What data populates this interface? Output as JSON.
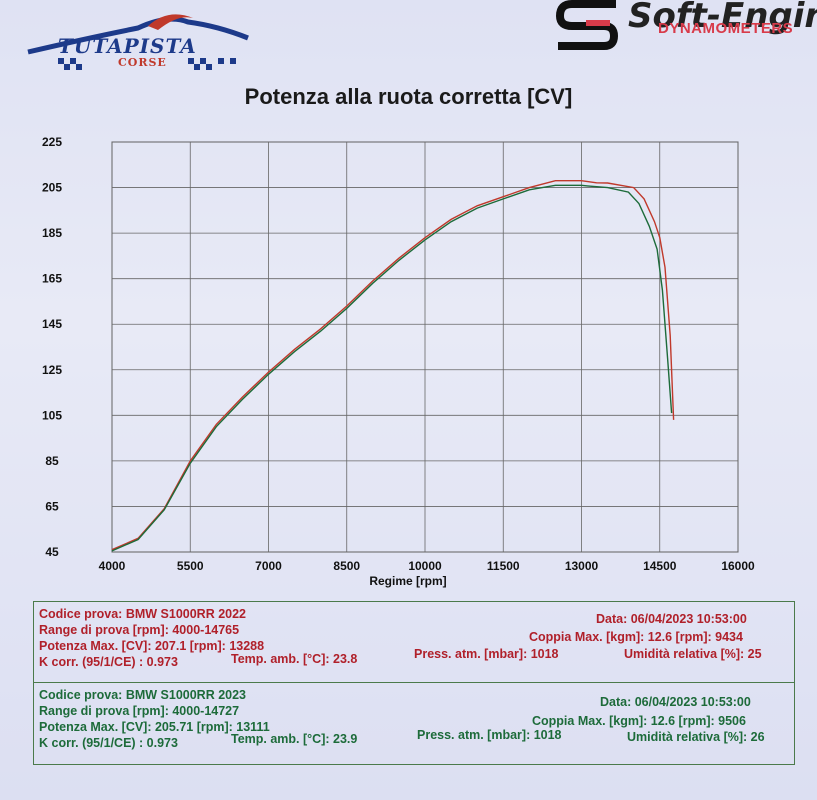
{
  "header": {
    "left_logo": {
      "name": "TUTAPISTA",
      "sub": "CORSE"
    },
    "right_logo": {
      "name": "Soft-Engine",
      "sub": "DYNAMOMETERS"
    }
  },
  "chart_data": {
    "type": "line",
    "title": "Potenza alla ruota corretta [CV]",
    "xlabel": "Regime [rpm]",
    "ylabel": "",
    "xlim": [
      4000,
      16000
    ],
    "ylim": [
      45,
      225
    ],
    "x_ticks": [
      "4000",
      "5500",
      "7000",
      "8500",
      "10000",
      "11500",
      "13000",
      "14500",
      "16000"
    ],
    "y_ticks": [
      "225",
      "205",
      "185",
      "165",
      "145",
      "125",
      "105",
      "85",
      "65",
      "45"
    ],
    "grid": true,
    "series": [
      {
        "name": "BMW S1000RR 2022",
        "color": "#c0392b",
        "x": [
          4000,
          4500,
          5000,
          5500,
          6000,
          6500,
          7000,
          7500,
          8000,
          8500,
          9000,
          9500,
          10000,
          10500,
          11000,
          11500,
          12000,
          12500,
          13000,
          13288,
          13500,
          14000,
          14200,
          14400,
          14500,
          14600,
          14700,
          14765
        ],
        "y": [
          46,
          51,
          64,
          85,
          101,
          113,
          124,
          134,
          143,
          153,
          164,
          174,
          183,
          191,
          197,
          201,
          205,
          208,
          208,
          207.1,
          207,
          205,
          200,
          190,
          183,
          170,
          140,
          103
        ]
      },
      {
        "name": "BMW S1000RR 2023",
        "color": "#1d6b3a",
        "x": [
          4000,
          4500,
          5000,
          5500,
          6000,
          6500,
          7000,
          7500,
          8000,
          8500,
          9000,
          9500,
          10000,
          10500,
          11000,
          11500,
          12000,
          12500,
          13000,
          13111,
          13500,
          13900,
          14100,
          14300,
          14450,
          14550,
          14650,
          14727
        ],
        "y": [
          45.5,
          50.5,
          63.5,
          84,
          100,
          112,
          123,
          133,
          142,
          152,
          163,
          173,
          182,
          190,
          196,
          200,
          204,
          206,
          206,
          205.71,
          205,
          203,
          198,
          188,
          178,
          160,
          130,
          106
        ]
      }
    ]
  },
  "tests": [
    {
      "color": "#b0202a",
      "code": "Codice prova: BMW S1000RR 2022",
      "range": "Range di prova [rpm]: 4000-14765",
      "power": "Potenza Max. [CV]: 207.1   [rpm]: 13288",
      "kcorr": "K corr. (95/1/CE) : 0.973",
      "temp": "Temp. amb. [°C]: 23.8",
      "date": "Data: 06/04/2023   10:53:00",
      "torque": "Coppia Max. [kgm]: 12.6   [rpm]: 9434",
      "press": "Press. atm. [mbar]: 1018",
      "humidity": "Umidità relativa [%]: 25"
    },
    {
      "color": "#1d6b3a",
      "code": "Codice prova: BMW S1000RR 2023",
      "range": "Range di prova [rpm]: 4000-14727",
      "power": "Potenza Max. [CV]: 205.71   [rpm]: 13111",
      "kcorr": "K corr. (95/1/CE) : 0.973",
      "temp": "Temp. amb. [°C]: 23.9",
      "date": "Data: 06/04/2023   10:53:00",
      "torque": "Coppia Max. [kgm]: 12.6   [rpm]: 9506",
      "press": "Press. atm. [mbar]: 1018",
      "humidity": "Umidità relativa [%]: 26"
    }
  ]
}
